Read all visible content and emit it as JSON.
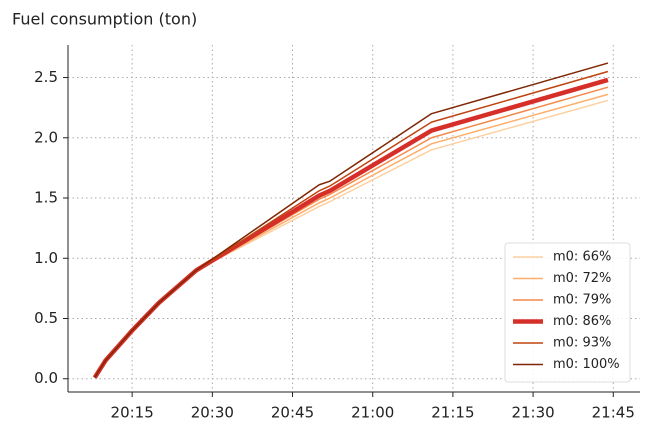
{
  "chart_data": {
    "type": "line",
    "title": "Fuel consumption (ton)",
    "x": [
      "20:08",
      "20:10",
      "20:15",
      "20:20",
      "20:27",
      "20:50",
      "20:52",
      "21:11",
      "21:44"
    ],
    "series": [
      {
        "name": "m0: 66%",
        "color": "#fdd0a2",
        "width": 1.5,
        "values": [
          0.01,
          0.15,
          0.4,
          0.63,
          0.9,
          1.43,
          1.47,
          1.9,
          2.31
        ]
      },
      {
        "name": "m0: 72%",
        "color": "#fdae6b",
        "width": 1.5,
        "values": [
          0.01,
          0.15,
          0.4,
          0.63,
          0.9,
          1.46,
          1.5,
          1.95,
          2.36
        ]
      },
      {
        "name": "m0: 79%",
        "color": "#f4894a",
        "width": 1.5,
        "values": [
          0.01,
          0.15,
          0.4,
          0.63,
          0.9,
          1.49,
          1.53,
          2.0,
          2.42
        ]
      },
      {
        "name": "m0: 86%",
        "color": "#d62f2a",
        "width": 4.5,
        "values": [
          0.01,
          0.15,
          0.4,
          0.63,
          0.9,
          1.52,
          1.56,
          2.06,
          2.48
        ]
      },
      {
        "name": "m0: 93%",
        "color": "#c0440f",
        "width": 1.5,
        "values": [
          0.01,
          0.15,
          0.4,
          0.63,
          0.9,
          1.56,
          1.6,
          2.13,
          2.55
        ]
      },
      {
        "name": "m0: 100%",
        "color": "#7f2704",
        "width": 1.5,
        "values": [
          0.01,
          0.15,
          0.4,
          0.63,
          0.9,
          1.61,
          1.64,
          2.2,
          2.62
        ]
      }
    ],
    "xlim": [
      "20:03",
      "21:50"
    ],
    "xticks": [
      "20:15",
      "20:30",
      "20:45",
      "21:00",
      "21:15",
      "21:30",
      "21:45"
    ],
    "ylim": [
      -0.11,
      2.77
    ],
    "yticks": [
      {
        "value": 0,
        "label": "0.0"
      },
      {
        "value": 0.5,
        "label": "0.5"
      },
      {
        "value": 1,
        "label": "1.0"
      },
      {
        "value": 1.5,
        "label": "1.5"
      },
      {
        "value": 2,
        "label": "2.0"
      },
      {
        "value": 2.5,
        "label": "2.5"
      }
    ],
    "grid": true,
    "legend": "lower right"
  }
}
